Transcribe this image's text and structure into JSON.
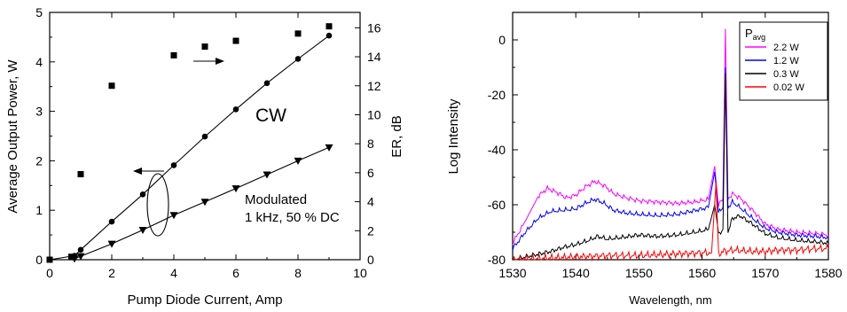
{
  "chart_data": [
    {
      "type": "line",
      "xlabel": "Pump Diode Current,  Amp",
      "ylabel": "Average Output Power,  W",
      "y2label": "ER,  dB",
      "xlim": [
        0,
        10
      ],
      "ylim": [
        0,
        5
      ],
      "y2lim": [
        0,
        17.06
      ],
      "xticks": [
        0,
        2,
        4,
        6,
        8,
        10
      ],
      "yticks": [
        0,
        1,
        2,
        3,
        4,
        5
      ],
      "y2ticks": [
        0,
        2,
        4,
        6,
        8,
        10,
        12,
        14,
        16
      ],
      "grid": false,
      "series": [
        {
          "name": "CW",
          "axis": "left",
          "marker": "circle",
          "x": [
            0,
            0.8,
            1,
            2,
            3,
            4,
            5,
            6,
            7,
            8,
            9
          ],
          "y": [
            0,
            0.08,
            0.2,
            0.77,
            1.32,
            1.91,
            2.49,
            3.04,
            3.57,
            4.06,
            4.53
          ]
        },
        {
          "name": "Modulated",
          "axis": "left",
          "marker": "triangle-down",
          "x": [
            0.8,
            1,
            2,
            3,
            4,
            5,
            6,
            7,
            8,
            9
          ],
          "y": [
            0.02,
            0.07,
            0.32,
            0.6,
            0.9,
            1.17,
            1.44,
            1.72,
            2.0,
            2.27
          ]
        },
        {
          "name": "ER",
          "axis": "right",
          "marker": "square",
          "x": [
            0,
            0.7,
            1,
            2,
            4,
            5,
            6,
            8,
            9
          ],
          "y": [
            0,
            0.2,
            5.9,
            12.0,
            14.1,
            14.7,
            15.1,
            15.6,
            16.1
          ]
        }
      ],
      "annotations": [
        {
          "text": "CW"
        },
        {
          "text": "Modulated"
        },
        {
          "text": "1 kHz, 50 % DC"
        }
      ]
    },
    {
      "type": "line",
      "xlabel": "Wavelength,  nm",
      "ylabel": "Log Intensity",
      "xlim": [
        1530,
        1580
      ],
      "ylim": [
        -80,
        10
      ],
      "xticks": [
        1530,
        1540,
        1550,
        1560,
        1570,
        1580
      ],
      "yticks": [
        -80,
        -60,
        -40,
        -20,
        0
      ],
      "grid": false,
      "legend": {
        "title": "P",
        "title_sub": "avg",
        "placement": "top-right",
        "entries": [
          "2.2 W",
          "1.2 W",
          "0.3 W",
          "0.02 W"
        ]
      },
      "series": [
        {
          "name": "2.2 W",
          "color": "#ff00ff",
          "x": [
            1530,
            1532,
            1534,
            1535.5,
            1537,
            1538.5,
            1540,
            1541.5,
            1543,
            1544.5,
            1546,
            1548,
            1550,
            1553,
            1556,
            1559,
            1561,
            1562,
            1562.6,
            1563.3,
            1563.7,
            1564.1,
            1564.8,
            1566,
            1568,
            1570,
            1572,
            1575,
            1578,
            1580
          ],
          "y": [
            -74,
            -66,
            -57,
            -54,
            -55.5,
            -57.5,
            -56.5,
            -53.5,
            -51.5,
            -53,
            -56,
            -57.5,
            -58.5,
            -59,
            -59.5,
            -59,
            -58,
            -46,
            -60,
            -58,
            4,
            -58,
            -56,
            -57.5,
            -62,
            -67,
            -69,
            -70,
            -70.5,
            -71
          ]
        },
        {
          "name": "1.2 W",
          "color": "#0000ff",
          "x": [
            1530,
            1532,
            1534,
            1536,
            1538,
            1540,
            1541.5,
            1543,
            1544.5,
            1546,
            1548,
            1550,
            1553,
            1556,
            1559,
            1561,
            1562,
            1562.6,
            1563.3,
            1563.7,
            1564.1,
            1564.8,
            1566,
            1568,
            1570,
            1572,
            1575,
            1578,
            1580
          ],
          "y": [
            -76,
            -70,
            -65,
            -62.5,
            -62,
            -61.5,
            -59.5,
            -58,
            -59.5,
            -62,
            -63,
            -63.5,
            -64,
            -63.5,
            -62,
            -61,
            -48,
            -63,
            -61,
            -10,
            -61,
            -59,
            -61,
            -65,
            -68.5,
            -70,
            -71,
            -71.5,
            -72
          ]
        },
        {
          "name": "0.3 W",
          "color": "#000000",
          "x": [
            1530,
            1533,
            1536,
            1538,
            1540,
            1542,
            1543.5,
            1545,
            1547,
            1550,
            1553,
            1556,
            1559,
            1561,
            1562,
            1562.6,
            1563.3,
            1563.7,
            1564.1,
            1564.8,
            1566,
            1568,
            1570,
            1572,
            1575,
            1578,
            1580
          ],
          "y": [
            -80,
            -78.5,
            -77,
            -75.5,
            -74.5,
            -73,
            -71.5,
            -72.5,
            -72,
            -71,
            -71.5,
            -71,
            -70,
            -69,
            -60,
            -71,
            -69,
            -12,
            -70,
            -65,
            -64,
            -67,
            -70.5,
            -72,
            -73,
            -73.5,
            -74
          ]
        },
        {
          "name": "0.02 W",
          "color": "#ff0000",
          "x": [
            1530,
            1535,
            1540,
            1545,
            1550,
            1555,
            1560,
            1561.5,
            1562.2,
            1562.6,
            1563.3,
            1565,
            1568,
            1570,
            1572,
            1575,
            1578,
            1580
          ],
          "y": [
            -80,
            -79.5,
            -79,
            -78.5,
            -78.5,
            -78,
            -77.5,
            -77.5,
            -52,
            -78,
            -77,
            -76.5,
            -77,
            -77,
            -76.5,
            -76.5,
            -76,
            -76
          ]
        }
      ]
    }
  ]
}
